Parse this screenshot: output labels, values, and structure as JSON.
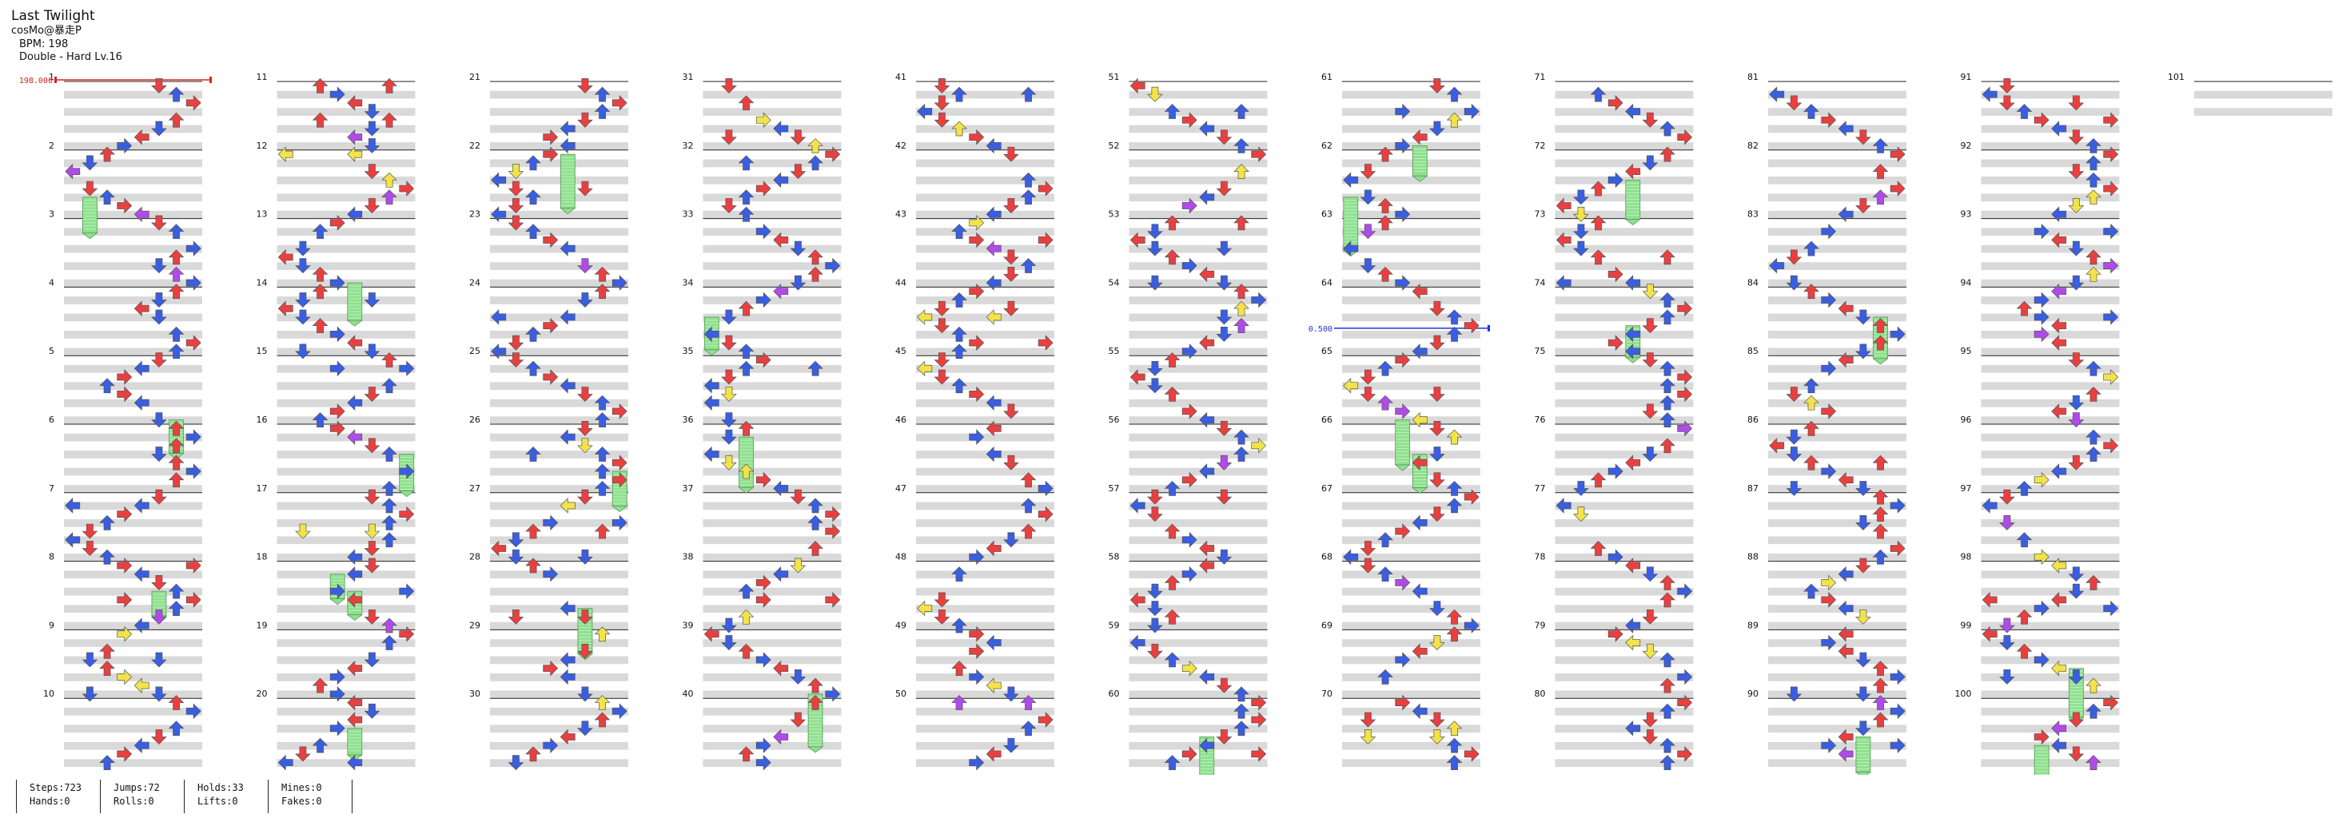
{
  "song": {
    "title": "Last Twilight",
    "artist": "cosMo@暴走P",
    "bpm_label": "BPM: 198",
    "chart_label": "Double - Hard Lv.16"
  },
  "bpm_marker": "198.000",
  "speed_marker": "0.500",
  "measures_per_column": 10,
  "visible_measure_count": 101,
  "colors": {
    "quarter": "#e84040",
    "eighth": "#3a5ee0",
    "sixteenth": "#f2e34a",
    "twelfth": "#b04ae8",
    "hold": "#8fe08f",
    "stripe": "#d9d9d9",
    "bpm": "#e02020",
    "speed": "#2030e0"
  },
  "stats": [
    {
      "items": [
        "Steps:723",
        "Hands:0"
      ]
    },
    {
      "items": [
        "Jumps:72",
        "Rolls:0"
      ]
    },
    {
      "items": [
        "Holds:33",
        "Lifts:0"
      ]
    },
    {
      "items": [
        "Mines:0",
        "Fakes:0"
      ]
    }
  ]
}
